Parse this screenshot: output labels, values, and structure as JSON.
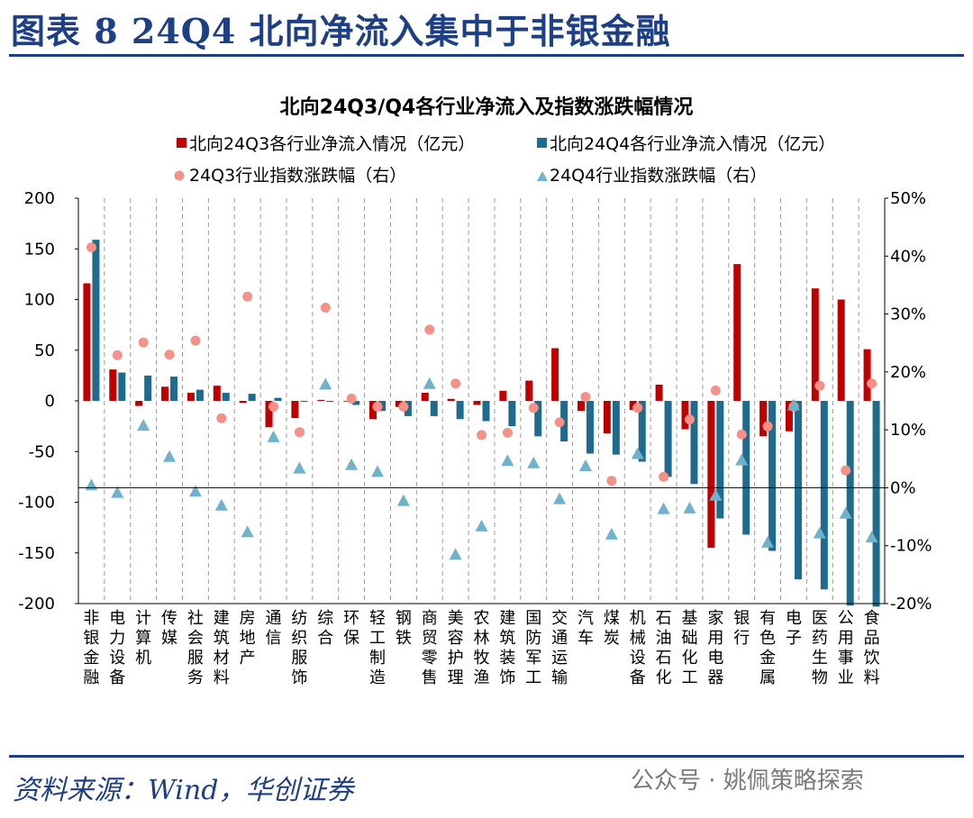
{
  "page": {
    "figure_title": "图表 8   24Q4 北向净流入集中于非银金融",
    "source": "资料来源：Wind，华创证券",
    "watermark": "公众号 · 姚佩策略探索"
  },
  "colors": {
    "q3_bar": "#c00000",
    "q4_bar": "#1f6b8e",
    "q3_dot": "#f4928a",
    "q4_tri": "#6fb2cc",
    "title_blue": "#1d3f86"
  },
  "chart_data": {
    "type": "bar",
    "title": "北向24Q3/Q4各行业净流入及指数涨跌幅情况",
    "categories": [
      "非银金融",
      "电力设备",
      "计算机",
      "传媒",
      "社会服务",
      "建筑材料",
      "房地产",
      "通信",
      "纺织服饰",
      "综合",
      "环保",
      "轻工制造",
      "钢铁",
      "商贸零售",
      "美容护理",
      "农林牧渔",
      "建筑装饰",
      "国防军工",
      "交通运输",
      "汽车",
      "煤炭",
      "机械设备",
      "石油石化",
      "基础化工",
      "家用电器",
      "银行",
      "有色金属",
      "电子",
      "医药生物",
      "公用事业",
      "食品饮料"
    ],
    "series": [
      {
        "name": "北向24Q3各行业净流入情况（亿元）",
        "type": "bar",
        "axis": "left",
        "values": [
          116,
          31,
          -5,
          14,
          8,
          15,
          -2,
          -26,
          -17,
          1,
          0,
          -18,
          -6,
          8,
          2,
          -4,
          10,
          20,
          52,
          -10,
          -32,
          -9,
          16,
          -28,
          -145,
          135,
          -35,
          -30,
          111,
          100,
          51
        ]
      },
      {
        "name": "北向24Q4各行业净流入情况（亿元）",
        "type": "bar",
        "axis": "left",
        "values": [
          159,
          28,
          25,
          24,
          11,
          8,
          7,
          3,
          -1,
          -1,
          -4,
          -10,
          -15,
          -15,
          -18,
          -20,
          -25,
          -35,
          -40,
          -52,
          -53,
          -60,
          -75,
          -82,
          -116,
          -132,
          -148,
          -176,
          -186,
          -202,
          -203
        ]
      },
      {
        "name": "24Q3行业指数涨跌幅（右）",
        "type": "scatter",
        "axis": "right",
        "marker": "circle",
        "values": [
          41.5,
          22.9,
          25.1,
          23,
          25.4,
          12,
          33,
          14,
          9.6,
          31.1,
          15.4,
          14,
          14,
          27.3,
          18,
          9.1,
          9.5,
          13.8,
          11.3,
          15.7,
          1.2,
          13.8,
          1.9,
          11.8,
          16.8,
          9.2,
          10.6,
          14,
          17.6,
          3,
          18
        ]
      },
      {
        "name": "24Q4行业指数涨跌幅（右）",
        "type": "scatter",
        "axis": "right",
        "marker": "triangle",
        "values": [
          0.5,
          -0.8,
          10.8,
          5.4,
          -0.6,
          -3,
          -7.6,
          8.8,
          3.4,
          17.9,
          4,
          2.8,
          -2.2,
          18,
          -11.5,
          -6.6,
          4.7,
          4.3,
          -1.9,
          3.8,
          -8,
          5.9,
          -3.6,
          -3.5,
          -1.3,
          4.8,
          -9.4,
          14.3,
          -7.8,
          -4.4,
          -8.5
        ]
      }
    ],
    "ylim_left": [
      -200,
      200
    ],
    "yticks_left": [
      "200",
      "150",
      "100",
      "50",
      "0",
      "-50",
      "-100",
      "-150",
      "-200"
    ],
    "ylim_right": [
      -20,
      50
    ],
    "yticks_right": [
      "50%",
      "40%",
      "30%",
      "20%",
      "10%",
      "0%",
      "-10%",
      "-20%"
    ],
    "legend_position": "top",
    "grid": "vertical dashed separators"
  }
}
